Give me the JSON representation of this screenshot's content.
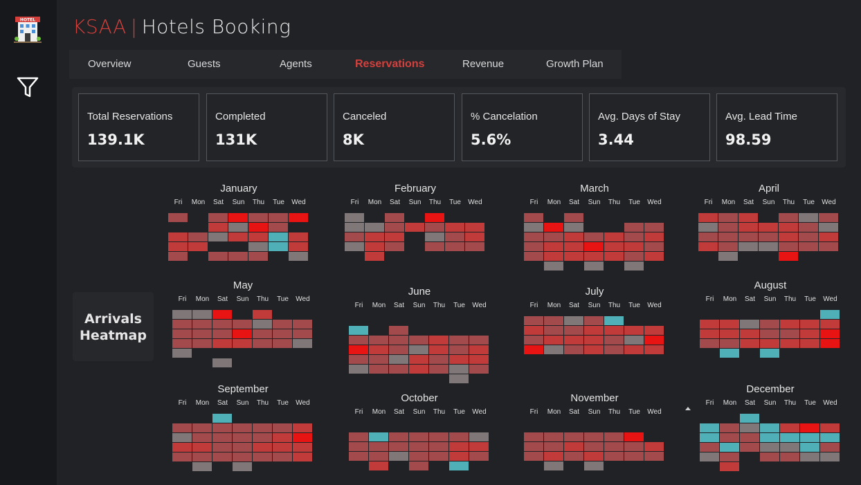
{
  "header": {
    "brand": "KSAA",
    "separator": "|",
    "app_title": "Hotels Booking"
  },
  "tabs": [
    {
      "label": "Overview",
      "active": false
    },
    {
      "label": "Guests",
      "active": false
    },
    {
      "label": "Agents",
      "active": false
    },
    {
      "label": "Reservations",
      "active": true
    },
    {
      "label": "Revenue",
      "active": false
    },
    {
      "label": "Growth Plan",
      "active": false
    }
  ],
  "kpis": [
    {
      "label": "Total Reservations",
      "value": "139.1K"
    },
    {
      "label": "Completed",
      "value": "131K"
    },
    {
      "label": "Canceled",
      "value": "8K"
    },
    {
      "label": "% Cancelation",
      "value": "5.6%"
    },
    {
      "label": "Avg. Days of Stay",
      "value": "3.44"
    },
    {
      "label": "Avg. Lead Time",
      "value": "98.59"
    }
  ],
  "heatmap": {
    "title_line1": "Arrivals",
    "title_line2": "Heatmap",
    "days": [
      "Fri",
      "Mon",
      "Sat",
      "Sun",
      "Thu",
      "Tue",
      "Wed"
    ],
    "colors": {
      "low": "#4fb0b8",
      "mid": "#8a7c7e",
      "high": "#e81414"
    },
    "months": [
      {
        "name": "January",
        "rows": [
          "2624224",
          "0031420",
          "3213353",
          "3300153",
          "2022201"
        ]
      },
      {
        "name": "February",
        "rows": [
          "1020400",
          "1123233",
          "2330123",
          "1320222",
          "0300000"
        ]
      },
      {
        "name": "March",
        "rows": [
          "2020000",
          "1410022",
          "2232323",
          "2334332",
          "2333323",
          "0101010"
        ]
      },
      {
        "name": "April",
        "rows": [
          "3230212",
          "1233321",
          "2222323",
          "3211222",
          "0100400"
        ]
      },
      {
        "name": "May",
        "rows": [
          "1140300",
          "2222122",
          "2224222",
          "2233221",
          "1000000",
          "0010000"
        ]
      },
      {
        "name": "June",
        "rows": [
          "0000000",
          "5020000",
          "2222322",
          "4321323",
          "2213233",
          "1223212",
          "0000010"
        ]
      },
      {
        "name": "July",
        "rows": [
          "2212500",
          "3223333",
          "2333214",
          "4123233",
          "0000000"
        ]
      },
      {
        "name": "August",
        "rows": [
          "0000005",
          "3312333",
          "3332234",
          "2233334",
          "0505000"
        ]
      },
      {
        "name": "September",
        "rows": [
          "0050000",
          "2222223",
          "1222234",
          "3322333",
          "2222223",
          "0101000"
        ]
      },
      {
        "name": "October",
        "rows": [
          "0000000",
          "2522221",
          "2222233",
          "2212232",
          "0302050"
        ]
      },
      {
        "name": "November",
        "rows": [
          "0000000",
          "2222240",
          "2232223",
          "2323222",
          "0101000"
        ]
      },
      {
        "name": "December",
        "rows": [
          "0050000",
          "5215343",
          "5225555",
          "2521152",
          "1202211",
          "0300000"
        ]
      }
    ]
  }
}
